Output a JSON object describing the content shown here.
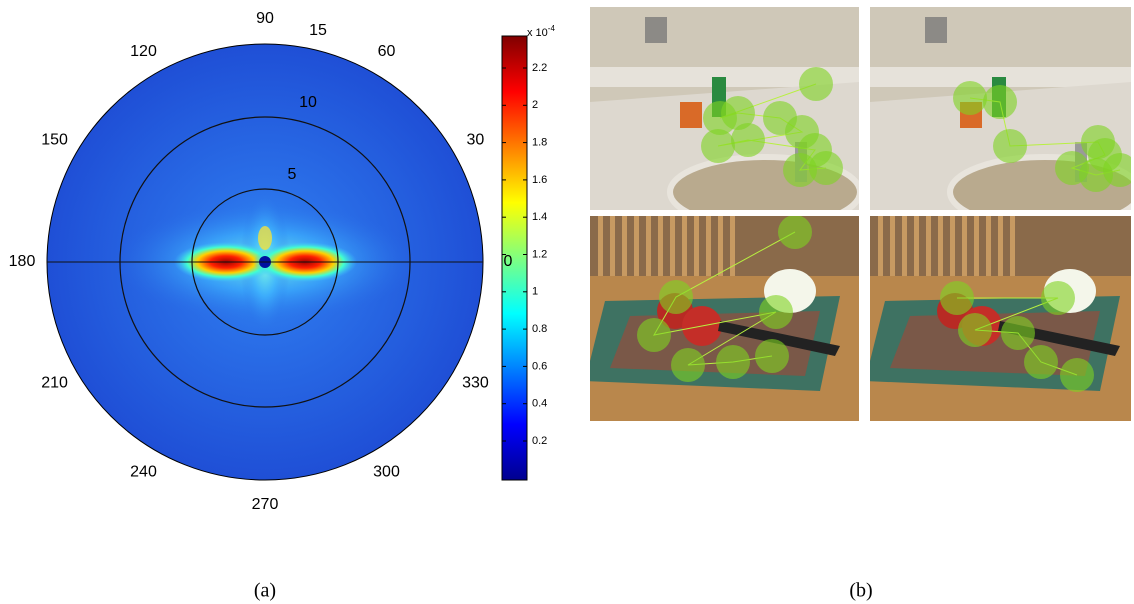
{
  "panel_a": {
    "angle_labels": [
      "0",
      "30",
      "60",
      "90",
      "120",
      "150",
      "180",
      "210",
      "240",
      "270",
      "300",
      "330"
    ],
    "radial_labels": [
      "5",
      "10",
      "15"
    ],
    "colorbar": {
      "ticks": [
        "0.2",
        "0.4",
        "0.6",
        "0.8",
        "1",
        "1.2",
        "1.4",
        "1.6",
        "1.8",
        "2",
        "2.2"
      ],
      "multiplier": "x 10",
      "exponent": "-4"
    },
    "caption": "(a)"
  },
  "panel_b": {
    "caption": "(b)"
  }
}
